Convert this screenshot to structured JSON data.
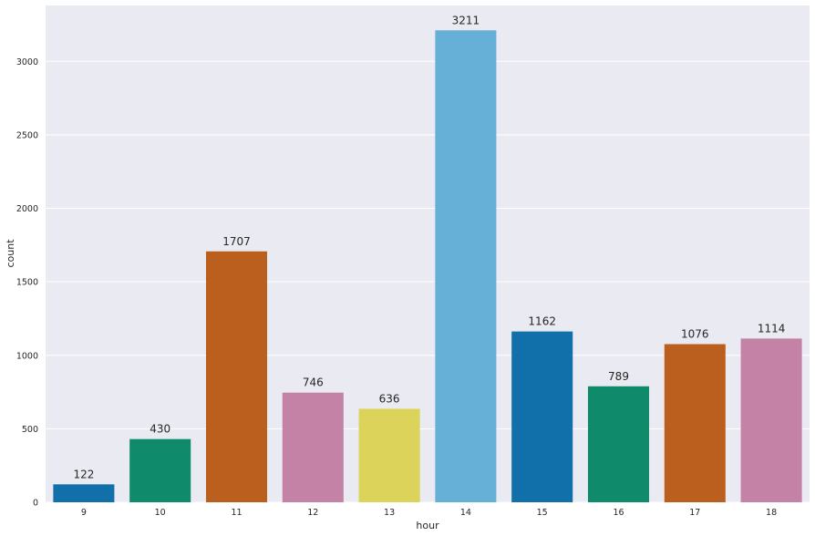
{
  "chart_data": {
    "type": "bar",
    "categories": [
      "9",
      "10",
      "11",
      "12",
      "13",
      "14",
      "15",
      "16",
      "17",
      "18"
    ],
    "values": [
      122,
      430,
      1707,
      746,
      636,
      3211,
      1162,
      789,
      1076,
      1114
    ],
    "data_labels": [
      "122",
      "430",
      "1707",
      "746",
      "636",
      "3211",
      "1162",
      "789",
      "1076",
      "1114"
    ],
    "bar_colors": [
      "#1170aa",
      "#0f8a6a",
      "#bb5f1e",
      "#c482a6",
      "#dbd35a",
      "#66b0d8",
      "#1170aa",
      "#0f8a6a",
      "#bb5f1e",
      "#c482a6"
    ],
    "xlabel": "hour",
    "ylabel": "count",
    "ylim": [
      0,
      3380
    ],
    "yticks": [
      0,
      500,
      1000,
      1500,
      2000,
      2500,
      3000
    ],
    "ytick_labels": [
      "0",
      "500",
      "1000",
      "1500",
      "2000",
      "2500",
      "3000"
    ],
    "grid": true,
    "background_color": "#eaeaf2",
    "grid_color": "#ffffff"
  }
}
